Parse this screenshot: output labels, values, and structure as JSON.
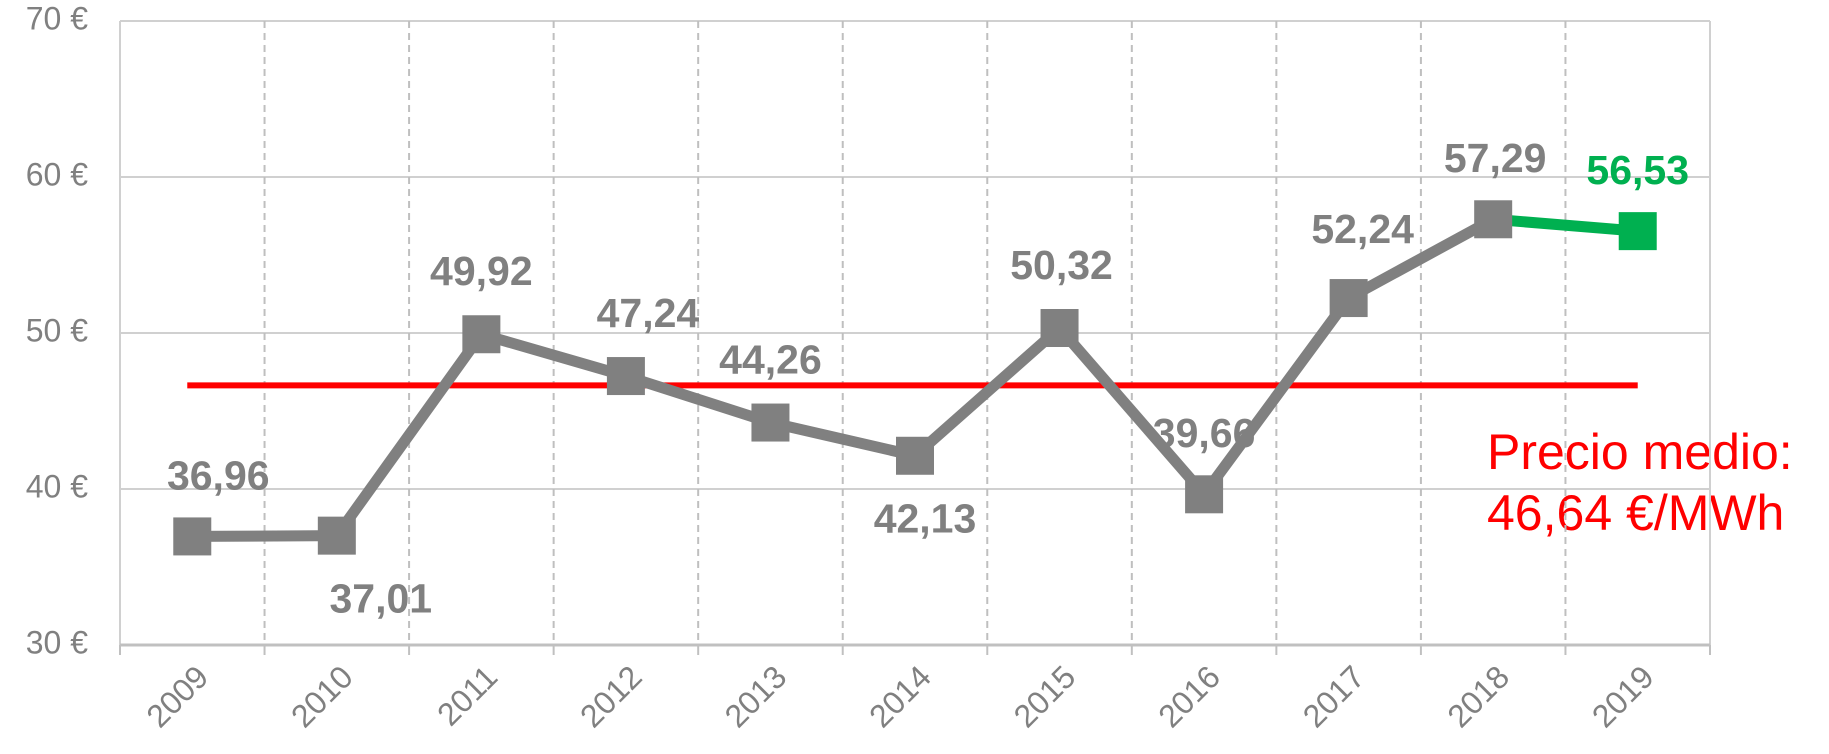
{
  "chart_data": {
    "type": "line",
    "categories": [
      "2009",
      "2010",
      "2011",
      "2012",
      "2013",
      "2014",
      "2015",
      "2016",
      "2017",
      "2018",
      "2019"
    ],
    "series": [
      {
        "color": "#808080",
        "values": [
          36.96,
          37.01,
          49.92,
          47.24,
          44.26,
          42.13,
          50.32,
          39.66,
          52.24,
          57.29,
          null
        ],
        "value_labels": [
          "36,96",
          "37,01",
          "49,92",
          "47,24",
          "44,26",
          "42,13",
          "50,32",
          "39,66",
          "52,24",
          "57,29",
          null
        ]
      },
      {
        "color": "#00b050",
        "values": [
          null,
          null,
          null,
          null,
          null,
          null,
          null,
          null,
          null,
          57.29,
          56.53
        ],
        "value_labels": [
          null,
          null,
          null,
          null,
          null,
          null,
          null,
          null,
          null,
          null,
          "56,53"
        ]
      }
    ],
    "average": {
      "value": 46.64,
      "color": "#ff0000",
      "label": "Precio medio:",
      "value_label": "46,64 €/MWh"
    },
    "ylim": [
      30,
      70
    ],
    "yticks": [
      {
        "value": 30,
        "label": "30 €"
      },
      {
        "value": 40,
        "label": "40 €"
      },
      {
        "value": 50,
        "label": "50 €"
      },
      {
        "value": 60,
        "label": "60 €"
      },
      {
        "value": 70,
        "label": "70 €"
      }
    ],
    "grid": true
  }
}
